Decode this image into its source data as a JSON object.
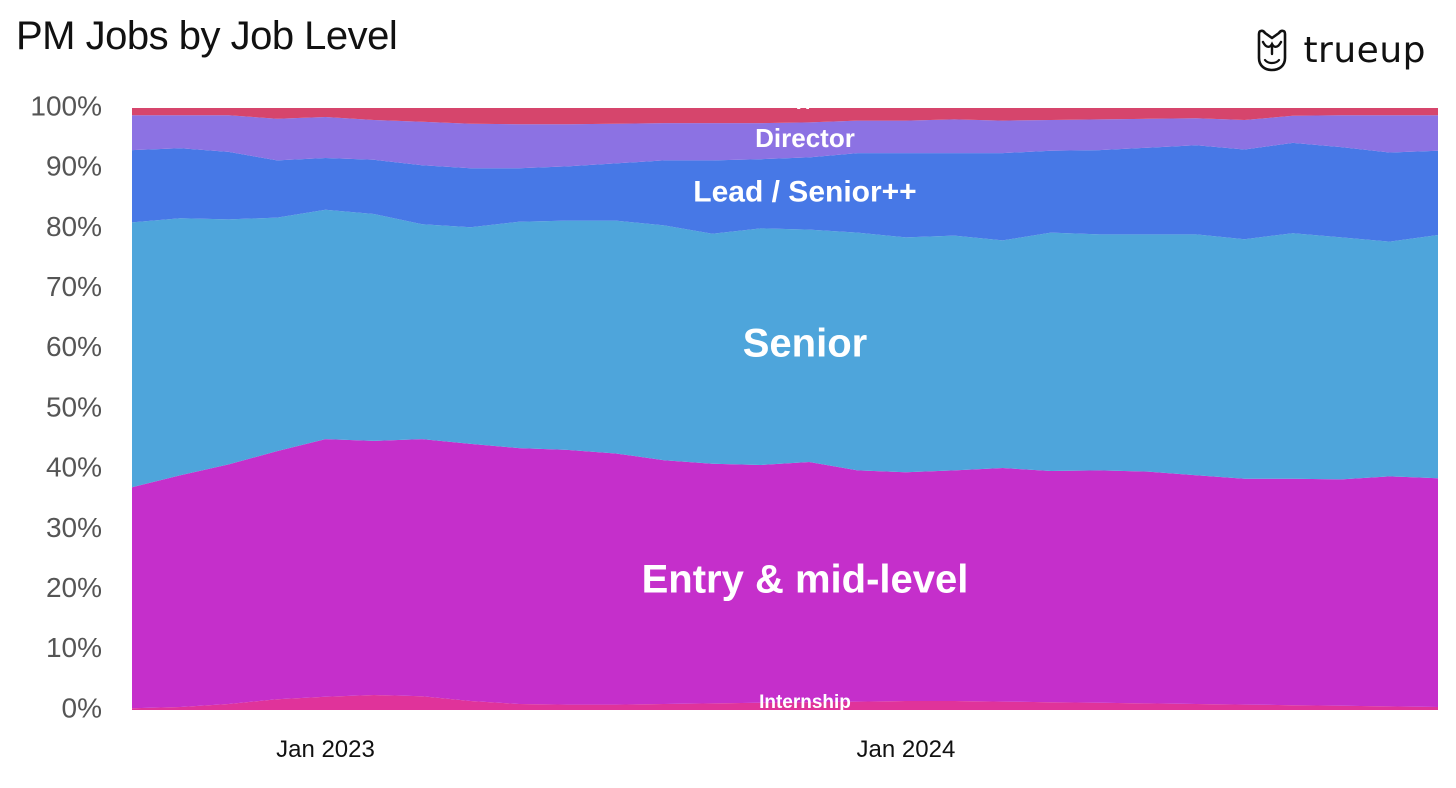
{
  "brand": {
    "name": "trueup",
    "logo_icon": "owl-icon"
  },
  "chart_data": {
    "type": "area",
    "title": "PM Jobs by Job Level",
    "stacked": true,
    "normalized_percent": true,
    "ylim": [
      0,
      100
    ],
    "yticks": [
      "0%",
      "10%",
      "20%",
      "30%",
      "40%",
      "50%",
      "60%",
      "70%",
      "80%",
      "90%",
      "100%"
    ],
    "xticks": [
      {
        "label": "Jan 2023",
        "x": "2023-01"
      },
      {
        "label": "Jan 2024",
        "x": "2024-01"
      }
    ],
    "xlim": [
      "2022-09",
      "2024-12"
    ],
    "x": [
      "2022-09",
      "2022-10",
      "2022-11",
      "2022-12",
      "2023-01",
      "2023-02",
      "2023-03",
      "2023-04",
      "2023-05",
      "2023-06",
      "2023-07",
      "2023-08",
      "2023-09",
      "2023-10",
      "2023-11",
      "2023-12",
      "2024-01",
      "2024-02",
      "2024-03",
      "2024-04",
      "2024-05",
      "2024-06",
      "2024-07",
      "2024-08",
      "2024-09",
      "2024-10",
      "2024-11",
      "2024-12"
    ],
    "series": [
      {
        "name": "Internship",
        "color": "#e0339a",
        "values": [
          0.3,
          0.5,
          1.0,
          1.8,
          2.2,
          2.5,
          2.3,
          1.5,
          1.0,
          0.9,
          0.9,
          1.0,
          1.1,
          1.2,
          1.3,
          1.4,
          1.5,
          1.5,
          1.4,
          1.3,
          1.2,
          1.1,
          1.0,
          0.9,
          0.8,
          0.7,
          0.6,
          0.5
        ]
      },
      {
        "name": "Entry & mid-level",
        "color": "#c52fcb",
        "values": [
          36.7,
          38.5,
          39.8,
          41.2,
          42.8,
          42.2,
          42.7,
          42.7,
          42.5,
          42.3,
          41.7,
          40.5,
          39.8,
          39.5,
          39.9,
          38.4,
          38.0,
          38.3,
          38.8,
          38.4,
          38.6,
          38.5,
          38.0,
          37.5,
          37.6,
          37.6,
          38.2,
          38.0
        ]
      },
      {
        "name": "Senior",
        "color": "#4ea5db",
        "values": [
          44.0,
          42.7,
          40.7,
          38.8,
          38.1,
          37.7,
          35.7,
          36.0,
          37.6,
          38.1,
          38.7,
          39.0,
          38.2,
          39.3,
          38.6,
          39.5,
          39.0,
          39.0,
          37.8,
          39.6,
          39.2,
          39.4,
          40.0,
          39.8,
          40.8,
          40.2,
          39.0,
          40.4
        ]
      },
      {
        "name": "Lead / Senior++",
        "color": "#4778e6",
        "values": [
          12.0,
          11.6,
          11.2,
          9.5,
          8.6,
          9.0,
          9.8,
          9.8,
          8.9,
          9.0,
          9.5,
          10.8,
          12.2,
          11.5,
          12.0,
          13.2,
          14.0,
          13.7,
          14.5,
          13.6,
          14.0,
          14.4,
          14.8,
          14.9,
          15.0,
          15.0,
          14.8,
          14.0
        ]
      },
      {
        "name": "Director",
        "color": "#8c72e3",
        "values": [
          5.8,
          5.5,
          6.1,
          6.9,
          6.8,
          6.6,
          7.2,
          7.4,
          7.3,
          7.0,
          6.6,
          6.2,
          6.2,
          6.0,
          5.8,
          5.4,
          5.4,
          5.6,
          5.4,
          5.1,
          5.1,
          4.8,
          4.5,
          4.9,
          4.5,
          5.3,
          6.2,
          5.9
        ]
      },
      {
        "name": "VP",
        "color": "#d6456c",
        "values": [
          1.2,
          1.2,
          1.2,
          1.8,
          1.5,
          2.0,
          2.3,
          2.6,
          2.7,
          2.7,
          2.6,
          2.5,
          2.5,
          2.5,
          2.4,
          2.1,
          2.1,
          1.9,
          2.1,
          2.0,
          1.9,
          1.8,
          1.7,
          2.0,
          1.3,
          1.2,
          1.2,
          1.2
        ]
      }
    ]
  }
}
